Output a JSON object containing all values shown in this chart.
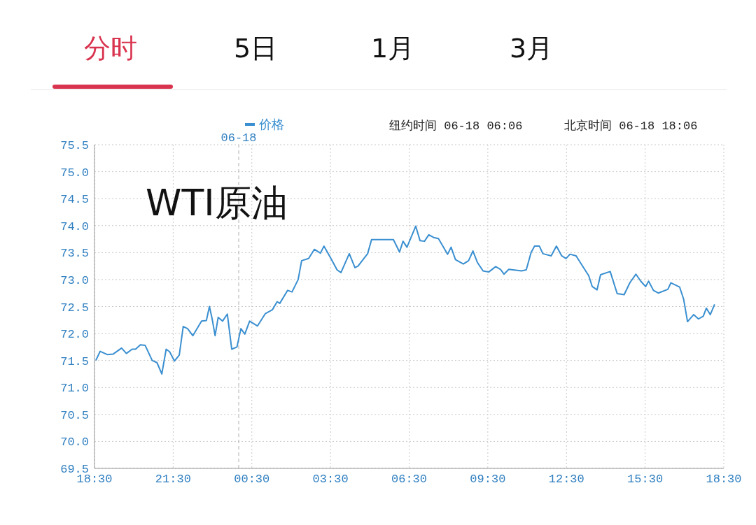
{
  "chart_data": {
    "type": "line",
    "title": "WTI原油",
    "annotations": [
      "分时",
      "5日",
      "1月",
      "3月",
      "纽约时间 06-18 06:06",
      "北京时间 06-18 18:06"
    ],
    "x": [
      "--06-17T18:33",
      "--06-17T18:43",
      "--06-17T18:59",
      "--06-17T19:13",
      "--06-17T19:32",
      "--06-17T19:43",
      "--06-17T19:56",
      "--06-17T20:04",
      "--06-17T20:15",
      "--06-17T20:26",
      "--06-17T20:42",
      "--06-17T20:53",
      "--06-17T21:04",
      "--06-17T21:14",
      "--06-17T21:22",
      "--06-17T21:33",
      "--06-17T21:44",
      "--06-17T21:53",
      "--06-17T22:03",
      "--06-17T22:15",
      "--06-17T22:35",
      "--06-17T22:46",
      "--06-17T22:53",
      "--06-17T22:59",
      "--06-17T23:06",
      "--06-17T23:13",
      "--06-17T23:23",
      "--06-17T23:34",
      "--06-17T23:44",
      "--06-17T23:56",
      "--06-18T00:05",
      "--06-18T00:14",
      "--06-18T00:25",
      "--06-18T00:43",
      "--06-18T01:01",
      "--06-18T01:17",
      "--06-18T01:28",
      "--06-18T01:34",
      "--06-18T01:52",
      "--06-18T02:02",
      "--06-18T02:16",
      "--06-18T02:24",
      "--06-18T02:40",
      "--06-18T02:53",
      "--06-18T03:07",
      "--06-18T03:15",
      "--06-18T03:31",
      "--06-18T03:45",
      "--06-18T03:54",
      "--06-18T04:13",
      "--06-18T04:26",
      "--06-18T04:33",
      "--06-18T04:55",
      "--06-18T05:04",
      "--06-18T05:54",
      "--06-18T06:08",
      "--06-18T06:16",
      "--06-18T06:25",
      "--06-18T06:45",
      "--06-18T06:55",
      "--06-18T07:05",
      "--06-18T07:15",
      "--06-18T07:26",
      "--06-18T07:37",
      "--06-18T07:58",
      "--06-18T08:06",
      "--06-18T08:16",
      "--06-18T08:34",
      "--06-18T08:46",
      "--06-18T08:56",
      "--06-18T09:06",
      "--06-18T09:19",
      "--06-18T09:32",
      "--06-18T09:48",
      "--06-18T09:59",
      "--06-18T10:07",
      "--06-18T10:18",
      "--06-18T10:47",
      "--06-18T10:58",
      "--06-18T11:09",
      "--06-18T11:17",
      "--06-18T11:28",
      "--06-18T11:36",
      "--06-18T11:55",
      "--06-18T12:07",
      "--06-18T12:19",
      "--06-18T12:29",
      "--06-18T12:38",
      "--06-18T12:52",
      "--06-18T13:10",
      "--06-18T13:21",
      "--06-18T13:29",
      "--06-18T13:40",
      "--06-18T13:48",
      "--06-18T14:10",
      "--06-18T14:26",
      "--06-18T14:42",
      "--06-18T14:55",
      "--06-18T15:09",
      "--06-18T15:20",
      "--06-18T15:31",
      "--06-18T15:38",
      "--06-18T15:49",
      "--06-18T16:00",
      "--06-18T16:22",
      "--06-18T16:29",
      "--06-18T16:49",
      "--06-18T16:58",
      "--06-18T17:07",
      "--06-18T17:21",
      "--06-18T17:32",
      "--06-18T17:43",
      "--06-18T17:50",
      "--06-18T17:59",
      "--06-18T18:09"
    ],
    "series": [
      {
        "name": "价格",
        "color": "#3a8fd0",
        "values": [
          71.5,
          71.67,
          71.61,
          71.62,
          71.73,
          71.63,
          71.71,
          71.71,
          71.79,
          71.78,
          71.5,
          71.46,
          71.25,
          71.71,
          71.66,
          71.49,
          71.6,
          72.13,
          72.09,
          71.96,
          72.23,
          72.24,
          72.5,
          72.28,
          71.96,
          72.3,
          72.23,
          72.36,
          71.71,
          71.75,
          72.09,
          71.99,
          72.23,
          72.14,
          72.37,
          72.44,
          72.59,
          72.56,
          72.8,
          72.77,
          73,
          73.35,
          73.39,
          73.56,
          73.49,
          73.62,
          73.39,
          73.18,
          73.13,
          73.48,
          73.22,
          73.25,
          73.48,
          73.74,
          73.74,
          73.51,
          73.71,
          73.6,
          73.99,
          73.72,
          73.71,
          73.83,
          73.78,
          73.76,
          73.47,
          73.6,
          73.37,
          73.29,
          73.35,
          73.53,
          73.32,
          73.16,
          73.14,
          73.24,
          73.19,
          73.1,
          73.19,
          73.16,
          73.18,
          73.5,
          73.62,
          73.62,
          73.48,
          73.44,
          73.62,
          73.44,
          73.39,
          73.47,
          73.44,
          73.21,
          73.07,
          72.87,
          72.81,
          73.09,
          73.15,
          72.74,
          72.72,
          72.94,
          73.1,
          72.97,
          72.87,
          72.97,
          72.8,
          72.75,
          72.82,
          72.94,
          72.86,
          72.64,
          72.22,
          72.35,
          72.27,
          72.32,
          72.47,
          72.35,
          72.54
        ]
      }
    ],
    "xlim": [
      "--06-17T18:30",
      "--06-18T18:30"
    ],
    "xticks": [
      {
        "value": "--06-17T18:30",
        "label": "18:30"
      },
      {
        "value": "--06-17T21:30",
        "label": "21:30"
      },
      {
        "value": "--06-18T00:30",
        "label": "00:30"
      },
      {
        "value": "--06-18T03:30",
        "label": "03:30"
      },
      {
        "value": "--06-18T06:30",
        "label": "06:30"
      },
      {
        "value": "--06-18T09:30",
        "label": "09:30"
      },
      {
        "value": "--06-18T12:30",
        "label": "12:30"
      },
      {
        "value": "--06-18T15:30",
        "label": "15:30"
      },
      {
        "value": "--06-18T18:30",
        "label": "18:30"
      }
    ],
    "ylim": [
      69.5,
      75.5
    ],
    "yticks": [
      {
        "value": 69.5,
        "label": "69.5"
      },
      {
        "value": 70,
        "label": "70.0"
      },
      {
        "value": 70.5,
        "label": "70.5"
      },
      {
        "value": 71,
        "label": "71.0"
      },
      {
        "value": 71.5,
        "label": "71.5"
      },
      {
        "value": 72,
        "label": "72.0"
      },
      {
        "value": 72.5,
        "label": "72.5"
      },
      {
        "value": 73,
        "label": "73.0"
      },
      {
        "value": 73.5,
        "label": "73.5"
      },
      {
        "value": 74,
        "label": "74.0"
      },
      {
        "value": 74.5,
        "label": "74.5"
      },
      {
        "value": 75,
        "label": "75.0"
      },
      {
        "value": 75.5,
        "label": "75.5"
      }
    ],
    "ref_lines": [
      {
        "axis": "x",
        "value": "--06-18",
        "label": "06-18",
        "color": "#b0b0b0",
        "line_style": "dashed"
      }
    ],
    "grid": true,
    "legend": "top",
    "marker": "none",
    "line_style": "solid"
  }
}
